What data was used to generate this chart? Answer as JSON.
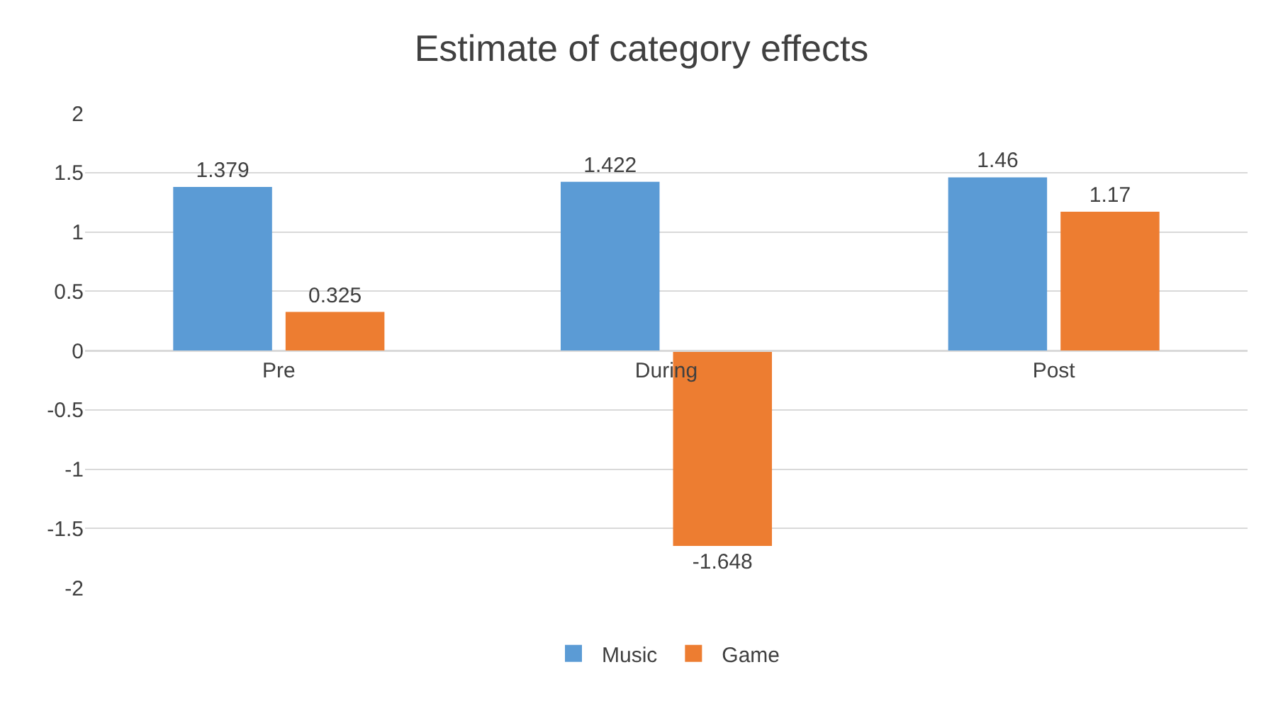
{
  "chart_data": {
    "type": "bar",
    "title": "Estimate of category effects",
    "categories": [
      "Pre",
      "During",
      "Post"
    ],
    "series": [
      {
        "name": "Music",
        "color": "#5b9bd5",
        "values": [
          1.379,
          1.422,
          1.46
        ]
      },
      {
        "name": "Game",
        "color": "#ed7d31",
        "values": [
          0.325,
          -1.648,
          1.17
        ]
      }
    ],
    "ylim": [
      -2,
      2
    ],
    "yticks": [
      -2,
      -1.5,
      -1,
      -0.5,
      0,
      0.5,
      1,
      1.5,
      2
    ],
    "grid": "y",
    "legend": "bottom",
    "data_labels": true
  }
}
